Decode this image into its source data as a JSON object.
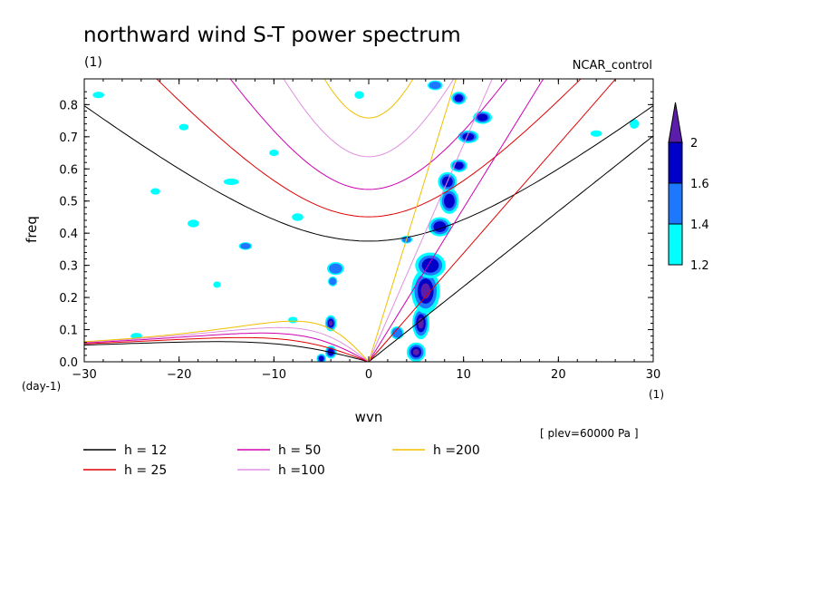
{
  "chart_data": {
    "type": "contour",
    "title": "northward wind S-T power spectrum",
    "subtitle_left": "(1)",
    "subtitle_right": "NCAR_control",
    "xlabel": "wvn",
    "ylabel": "freq",
    "x_unit_label": "(1)",
    "y_unit_label": "(day-1)",
    "xlim": [
      -30,
      30
    ],
    "ylim": [
      0,
      0.88
    ],
    "x_ticks": [
      -30,
      -20,
      -10,
      0,
      10,
      20,
      30
    ],
    "y_ticks": [
      0.0,
      0.1,
      0.2,
      0.3,
      0.4,
      0.5,
      0.6,
      0.7,
      0.8
    ],
    "annotation": "[ plev=60000 Pa ]",
    "colorbar": {
      "levels": [
        1.2,
        1.4,
        1.6,
        2
      ],
      "colors": [
        "#00ffff",
        "#1e78ff",
        "#0000c8",
        "#5a1eaa"
      ],
      "extend": "max"
    },
    "dispersion_curves": [
      {
        "label": "h = 12",
        "h": 12,
        "color": "#000000"
      },
      {
        "label": "h = 25",
        "h": 25,
        "color": "#e00000"
      },
      {
        "label": "h = 50",
        "h": 50,
        "color": "#d000b0"
      },
      {
        "label": "h =100",
        "h": 100,
        "color": "#e090e0"
      },
      {
        "label": "h =200",
        "h": 200,
        "color": "#f0c000"
      }
    ],
    "contour_blobs": [
      {
        "x": 5.0,
        "y": 0.03,
        "rx": 1.0,
        "ry": 0.03,
        "level": 3
      },
      {
        "x": 5.5,
        "y": 0.12,
        "rx": 0.9,
        "ry": 0.05,
        "level": 3
      },
      {
        "x": 6.0,
        "y": 0.22,
        "rx": 1.5,
        "ry": 0.07,
        "level": 3
      },
      {
        "x": 6.5,
        "y": 0.3,
        "rx": 1.6,
        "ry": 0.04,
        "level": 2
      },
      {
        "x": 7.5,
        "y": 0.42,
        "rx": 1.2,
        "ry": 0.03,
        "level": 2
      },
      {
        "x": 8.5,
        "y": 0.5,
        "rx": 1.0,
        "ry": 0.04,
        "level": 2
      },
      {
        "x": 8.3,
        "y": 0.56,
        "rx": 1.0,
        "ry": 0.03,
        "level": 2
      },
      {
        "x": 9.5,
        "y": 0.61,
        "rx": 0.9,
        "ry": 0.02,
        "level": 2
      },
      {
        "x": 10.5,
        "y": 0.7,
        "rx": 1.1,
        "ry": 0.02,
        "level": 2
      },
      {
        "x": 12.0,
        "y": 0.76,
        "rx": 1.0,
        "ry": 0.02,
        "level": 2
      },
      {
        "x": 9.5,
        "y": 0.82,
        "rx": 0.8,
        "ry": 0.02,
        "level": 2
      },
      {
        "x": 7.0,
        "y": 0.86,
        "rx": 0.8,
        "ry": 0.015,
        "level": 1
      },
      {
        "x": -4.0,
        "y": 0.12,
        "rx": 0.6,
        "ry": 0.025,
        "level": 3
      },
      {
        "x": -4.0,
        "y": 0.03,
        "rx": 0.6,
        "ry": 0.02,
        "level": 2
      },
      {
        "x": -5.0,
        "y": 0.01,
        "rx": 0.5,
        "ry": 0.015,
        "level": 2
      },
      {
        "x": -3.5,
        "y": 0.29,
        "rx": 0.9,
        "ry": 0.02,
        "level": 1
      },
      {
        "x": -3.8,
        "y": 0.25,
        "rx": 0.5,
        "ry": 0.015,
        "level": 1
      },
      {
        "x": -13.0,
        "y": 0.36,
        "rx": 0.7,
        "ry": 0.012,
        "level": 1
      },
      {
        "x": -14.5,
        "y": 0.56,
        "rx": 0.8,
        "ry": 0.01,
        "level": 0
      },
      {
        "x": -18.5,
        "y": 0.43,
        "rx": 0.6,
        "ry": 0.012,
        "level": 0
      },
      {
        "x": -22.5,
        "y": 0.53,
        "rx": 0.5,
        "ry": 0.01,
        "level": 0
      },
      {
        "x": -24.5,
        "y": 0.08,
        "rx": 0.6,
        "ry": 0.01,
        "level": 0
      },
      {
        "x": -28.5,
        "y": 0.83,
        "rx": 0.6,
        "ry": 0.01,
        "level": 0
      },
      {
        "x": -19.5,
        "y": 0.73,
        "rx": 0.5,
        "ry": 0.01,
        "level": 0
      },
      {
        "x": -8.0,
        "y": 0.13,
        "rx": 0.5,
        "ry": 0.01,
        "level": 0
      },
      {
        "x": -1.0,
        "y": 0.83,
        "rx": 0.5,
        "ry": 0.012,
        "level": 0
      },
      {
        "x": 3.0,
        "y": 0.09,
        "rx": 0.7,
        "ry": 0.02,
        "level": 1
      },
      {
        "x": 4.0,
        "y": 0.38,
        "rx": 0.6,
        "ry": 0.012,
        "level": 1
      },
      {
        "x": 28.0,
        "y": 0.74,
        "rx": 0.5,
        "ry": 0.015,
        "level": 0
      },
      {
        "x": 24.0,
        "y": 0.71,
        "rx": 0.6,
        "ry": 0.01,
        "level": 0
      },
      {
        "x": -7.5,
        "y": 0.45,
        "rx": 0.6,
        "ry": 0.012,
        "level": 0
      },
      {
        "x": -10.0,
        "y": 0.65,
        "rx": 0.5,
        "ry": 0.01,
        "level": 0
      },
      {
        "x": -16.0,
        "y": 0.24,
        "rx": 0.4,
        "ry": 0.01,
        "level": 0
      }
    ]
  }
}
